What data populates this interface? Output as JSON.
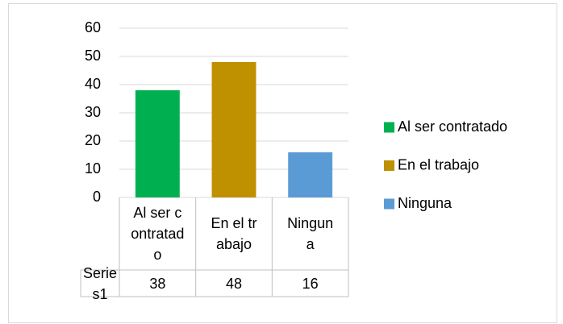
{
  "chart_data": {
    "type": "bar",
    "categories": [
      "Al ser contratado",
      "En el trabajo",
      "Ninguna"
    ],
    "values": [
      38,
      48,
      16
    ],
    "colors": [
      "#00b050",
      "#bf9000",
      "#5b9bd5"
    ],
    "series_name": "Series1",
    "ylim": [
      0,
      60
    ],
    "yticks": [
      0,
      10,
      20,
      30,
      40,
      50,
      60
    ],
    "grid": true,
    "legend": "right",
    "data_table": true
  }
}
